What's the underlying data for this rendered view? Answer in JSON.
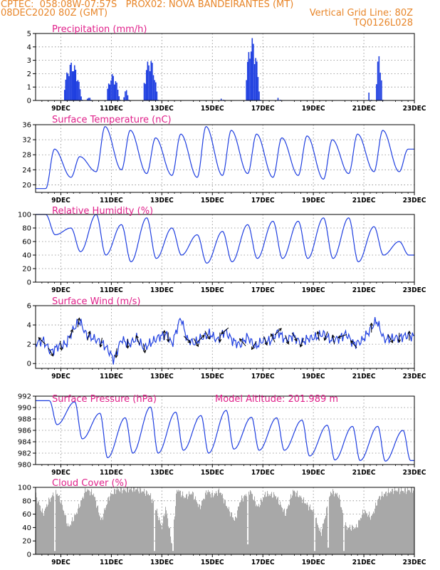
{
  "header": {
    "left_line1": "CPTEC:  058:08W-07:57S   PROX02: NOVA BANDEIRANTES (MT)",
    "left_line2": "08DEC2020 80Z (GMT)",
    "right_line2": "Vertical Grid Line: 80Z",
    "right_line3": "TQ0126L028"
  },
  "colors": {
    "header": "#e8862a",
    "title": "#e0208a",
    "line": "#1f3fe0",
    "cloud": "#a8a8a8",
    "grid": "#888888"
  },
  "chart_data": [
    {
      "type": "bar",
      "title": "Precipitation (mm/h)",
      "ylim": [
        0,
        5
      ],
      "yticks": [
        0,
        1,
        2,
        3,
        4,
        5
      ],
      "xlim": [
        8.0,
        23.0
      ],
      "xtick_positions": [
        9,
        11,
        13,
        15,
        17,
        19,
        21,
        23
      ],
      "xtick_labels": [
        "9DEC",
        "11DEC",
        "13DEC",
        "15DEC",
        "17DEC",
        "19DEC",
        "21DEC",
        "23DEC"
      ],
      "grid": true,
      "bursts": [
        {
          "start": 9.15,
          "end": 9.85,
          "peak": 2.9
        },
        {
          "start": 10.05,
          "end": 10.2,
          "peak": 0.3
        },
        {
          "start": 10.85,
          "end": 11.35,
          "peak": 2.0
        },
        {
          "start": 11.5,
          "end": 11.7,
          "peak": 0.8
        },
        {
          "start": 12.3,
          "end": 12.85,
          "peak": 3.2
        },
        {
          "start": 15.35,
          "end": 15.45,
          "peak": 0.3
        },
        {
          "start": 16.35,
          "end": 16.9,
          "peak": 4.7
        },
        {
          "start": 17.6,
          "end": 17.7,
          "peak": 0.5
        },
        {
          "start": 21.2,
          "end": 21.3,
          "peak": 1.3
        },
        {
          "start": 21.5,
          "end": 21.75,
          "peak": 3.5
        }
      ]
    },
    {
      "type": "line",
      "title": "Surface Temperature (nC)",
      "ylim": [
        18,
        36
      ],
      "yticks": [
        20,
        24,
        28,
        32,
        36
      ],
      "grid": true,
      "daily_max": [
        29.5,
        27.5,
        35.5,
        34.5,
        32.5,
        33.5,
        35.5,
        34.5,
        33.5,
        32.5,
        33.0,
        32.0,
        33.5,
        34.5,
        29.5
      ],
      "daily_min": [
        19.0,
        22.0,
        23.5,
        24.0,
        23.0,
        22.5,
        22.0,
        22.5,
        23.0,
        22.0,
        22.5,
        21.5,
        23.0,
        23.5,
        23.5
      ]
    },
    {
      "type": "line",
      "title": "Relative Humidity (%)",
      "ylim": [
        0,
        100
      ],
      "yticks": [
        0,
        20,
        40,
        60,
        80,
        100
      ],
      "grid": true,
      "daily_max": [
        100,
        80,
        100,
        85,
        95,
        80,
        70,
        75,
        85,
        90,
        90,
        95,
        95,
        82,
        60
      ],
      "daily_min": [
        70,
        45,
        40,
        30,
        35,
        40,
        28,
        30,
        35,
        35,
        35,
        35,
        30,
        40,
        40
      ]
    },
    {
      "type": "line",
      "title": "Surface Wind (m/s)",
      "ylim": [
        -0.5,
        6
      ],
      "yticks": [
        0,
        2,
        4,
        6
      ],
      "grid": true,
      "segments": [
        [
          8.0,
          2.1
        ],
        [
          8.3,
          2.4
        ],
        [
          8.6,
          1.2
        ],
        [
          8.9,
          1.8
        ],
        [
          9.2,
          2.0
        ],
        [
          9.5,
          3.6
        ],
        [
          9.75,
          4.4
        ],
        [
          10.0,
          3.0
        ],
        [
          10.3,
          2.6
        ],
        [
          10.6,
          2.2
        ],
        [
          10.85,
          1.5
        ],
        [
          11.1,
          0.4
        ],
        [
          11.4,
          2.5
        ],
        [
          11.7,
          2.0
        ],
        [
          12.0,
          2.6
        ],
        [
          12.3,
          1.6
        ],
        [
          12.6,
          2.2
        ],
        [
          12.9,
          2.8
        ],
        [
          13.2,
          3.0
        ],
        [
          13.4,
          2.0
        ],
        [
          13.75,
          4.8
        ],
        [
          14.0,
          2.5
        ],
        [
          14.3,
          2.1
        ],
        [
          14.6,
          2.7
        ],
        [
          14.9,
          3.1
        ],
        [
          15.2,
          2.4
        ],
        [
          15.5,
          3.4
        ],
        [
          15.8,
          2.4
        ],
        [
          16.1,
          1.9
        ],
        [
          16.4,
          2.8
        ],
        [
          16.7,
          1.7
        ],
        [
          17.0,
          2.4
        ],
        [
          17.3,
          2.3
        ],
        [
          17.6,
          3.3
        ],
        [
          17.9,
          2.4
        ],
        [
          18.2,
          2.9
        ],
        [
          18.5,
          2.1
        ],
        [
          18.8,
          2.6
        ],
        [
          19.1,
          2.7
        ],
        [
          19.4,
          3.1
        ],
        [
          19.7,
          2.4
        ],
        [
          20.0,
          2.6
        ],
        [
          20.3,
          3.1
        ],
        [
          20.6,
          2.0
        ],
        [
          20.9,
          2.3
        ],
        [
          21.2,
          3.3
        ],
        [
          21.5,
          4.5
        ],
        [
          21.8,
          2.5
        ],
        [
          22.1,
          2.6
        ],
        [
          22.4,
          2.7
        ],
        [
          22.7,
          2.9
        ],
        [
          23.0,
          2.8
        ]
      ],
      "arrows": [
        [
          8.25,
          135
        ],
        [
          8.6,
          300
        ],
        [
          9.0,
          280
        ],
        [
          9.4,
          70
        ],
        [
          9.7,
          80
        ],
        [
          10.1,
          75
        ],
        [
          10.6,
          260
        ],
        [
          11.2,
          265
        ],
        [
          11.65,
          270
        ],
        [
          12.05,
          110
        ],
        [
          12.3,
          280
        ],
        [
          13.1,
          90
        ],
        [
          13.25,
          270
        ],
        [
          14.0,
          315
        ],
        [
          14.35,
          300
        ],
        [
          14.55,
          45
        ],
        [
          14.8,
          300
        ],
        [
          15.3,
          270
        ],
        [
          15.5,
          220
        ],
        [
          16.2,
          130
        ],
        [
          16.65,
          240
        ],
        [
          17.1,
          290
        ],
        [
          17.4,
          115
        ],
        [
          17.6,
          45
        ],
        [
          17.95,
          290
        ],
        [
          18.25,
          300
        ],
        [
          18.55,
          250
        ],
        [
          19.2,
          100
        ],
        [
          19.5,
          250
        ],
        [
          19.8,
          100
        ],
        [
          20.15,
          200
        ],
        [
          20.6,
          130
        ],
        [
          21.3,
          90
        ],
        [
          22.05,
          300
        ],
        [
          22.4,
          270
        ],
        [
          22.8,
          90
        ]
      ]
    },
    {
      "type": "line",
      "title": "Surface Pressure (hPa)",
      "annotation": "Model Altitude: 201.989 m",
      "ylim": [
        980,
        992
      ],
      "yticks": [
        980,
        982,
        984,
        986,
        988,
        990,
        992
      ],
      "grid": true,
      "daily_max": [
        991.2,
        991.0,
        989.0,
        988.2,
        990.1,
        989.2,
        988.6,
        989.5,
        988.3,
        988.2,
        987.8,
        986.9,
        986.7,
        986.7,
        986.0
      ],
      "daily_min": [
        987.0,
        984.5,
        981.2,
        982.0,
        982.0,
        982.5,
        982.0,
        982.7,
        982.5,
        982.5,
        981.5,
        980.8,
        980.7,
        980.6,
        980.7
      ]
    },
    {
      "type": "area",
      "title": "Cloud Cover (%)",
      "ylim": [
        0,
        100
      ],
      "yticks": [
        0,
        20,
        40,
        60,
        80,
        100
      ],
      "grid": true,
      "keyframes": [
        [
          8.0,
          88
        ],
        [
          8.3,
          60
        ],
        [
          8.5,
          78
        ],
        [
          8.8,
          95
        ],
        [
          9.0,
          80
        ],
        [
          9.3,
          40
        ],
        [
          9.6,
          60
        ],
        [
          10.0,
          97
        ],
        [
          10.3,
          90
        ],
        [
          10.6,
          50
        ],
        [
          10.9,
          85
        ],
        [
          11.2,
          97
        ],
        [
          11.5,
          96
        ],
        [
          11.9,
          98
        ],
        [
          12.2,
          95
        ],
        [
          12.5,
          90
        ],
        [
          12.7,
          75
        ],
        [
          13.0,
          40
        ],
        [
          13.15,
          70
        ],
        [
          13.4,
          15
        ],
        [
          13.6,
          98
        ],
        [
          13.9,
          85
        ],
        [
          14.2,
          92
        ],
        [
          14.5,
          70
        ],
        [
          14.8,
          95
        ],
        [
          15.0,
          88
        ],
        [
          15.3,
          95
        ],
        [
          15.6,
          70
        ],
        [
          15.9,
          50
        ],
        [
          16.1,
          80
        ],
        [
          16.5,
          95
        ],
        [
          16.8,
          70
        ],
        [
          17.1,
          90
        ],
        [
          17.5,
          88
        ],
        [
          17.9,
          60
        ],
        [
          18.2,
          95
        ],
        [
          18.5,
          85
        ],
        [
          18.8,
          72
        ],
        [
          19.0,
          65
        ],
        [
          19.3,
          30
        ],
        [
          19.7,
          94
        ],
        [
          20.0,
          88
        ],
        [
          20.3,
          40
        ],
        [
          20.7,
          40
        ],
        [
          21.0,
          65
        ],
        [
          21.3,
          55
        ],
        [
          21.6,
          85
        ],
        [
          21.9,
          92
        ],
        [
          22.2,
          96
        ],
        [
          22.6,
          95
        ],
        [
          23.0,
          97
        ]
      ],
      "dips": [
        [
          8.75,
          5
        ],
        [
          12.7,
          5
        ],
        [
          13.45,
          5
        ],
        [
          16.4,
          15
        ],
        [
          19.05,
          5
        ],
        [
          19.6,
          10
        ],
        [
          20.2,
          5
        ]
      ]
    }
  ]
}
